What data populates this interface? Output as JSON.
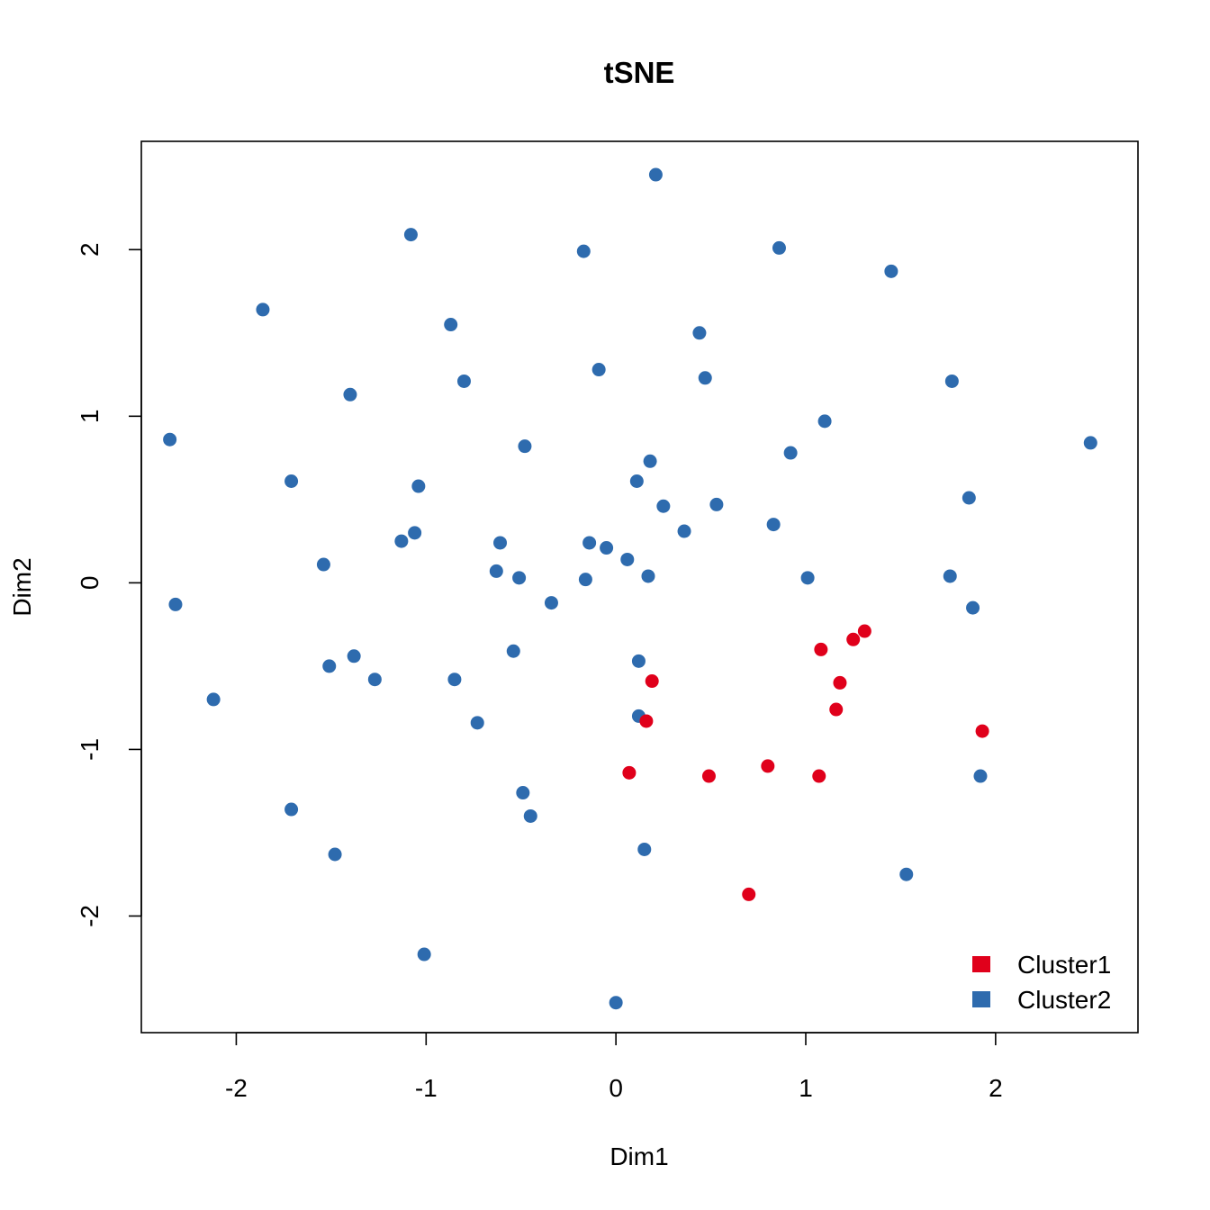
{
  "chart_data": {
    "type": "scatter",
    "title": "tSNE",
    "xlabel": "Dim1",
    "ylabel": "Dim2",
    "xlim": [
      -2.5,
      2.75
    ],
    "ylim": [
      -2.7,
      2.65
    ],
    "xticks": [
      -2,
      -1,
      0,
      1,
      2
    ],
    "yticks": [
      -2,
      -1,
      0,
      1,
      2
    ],
    "xtick_labels": [
      "-2",
      "-1",
      "0",
      "1",
      "2"
    ],
    "ytick_labels": [
      "-2",
      "-1",
      "0",
      "1",
      "2"
    ],
    "grid": false,
    "legend_position": "bottom-right",
    "series": [
      {
        "name": "Cluster1",
        "color": "#E0001B",
        "points": [
          [
            0.19,
            -0.59
          ],
          [
            0.16,
            -0.83
          ],
          [
            0.07,
            -1.14
          ],
          [
            0.49,
            -1.16
          ],
          [
            0.8,
            -1.1
          ],
          [
            1.07,
            -1.16
          ],
          [
            0.7,
            -1.87
          ],
          [
            1.08,
            -0.4
          ],
          [
            1.18,
            -0.6
          ],
          [
            1.16,
            -0.76
          ],
          [
            1.25,
            -0.34
          ],
          [
            1.31,
            -0.29
          ],
          [
            1.93,
            -0.89
          ]
        ]
      },
      {
        "name": "Cluster2",
        "color": "#2E6BAE",
        "points": [
          [
            -2.35,
            0.86
          ],
          [
            -2.32,
            -0.13
          ],
          [
            -2.12,
            -0.7
          ],
          [
            -1.86,
            1.64
          ],
          [
            -1.71,
            0.61
          ],
          [
            -1.71,
            -1.36
          ],
          [
            -1.54,
            0.11
          ],
          [
            -1.51,
            -0.5
          ],
          [
            -1.48,
            -1.63
          ],
          [
            -1.4,
            1.13
          ],
          [
            -1.38,
            -0.44
          ],
          [
            -1.27,
            -0.58
          ],
          [
            -1.13,
            0.25
          ],
          [
            -1.08,
            2.09
          ],
          [
            -1.06,
            0.3
          ],
          [
            -1.04,
            0.58
          ],
          [
            -1.01,
            -2.23
          ],
          [
            -0.87,
            1.55
          ],
          [
            -0.85,
            -0.58
          ],
          [
            -0.8,
            1.21
          ],
          [
            -0.73,
            -0.84
          ],
          [
            -0.63,
            0.07
          ],
          [
            -0.61,
            0.24
          ],
          [
            -0.54,
            -0.41
          ],
          [
            -0.51,
            0.03
          ],
          [
            -0.49,
            -1.26
          ],
          [
            -0.48,
            0.82
          ],
          [
            -0.45,
            -1.4
          ],
          [
            -0.34,
            -0.12
          ],
          [
            -0.17,
            1.99
          ],
          [
            -0.16,
            0.02
          ],
          [
            -0.14,
            0.24
          ],
          [
            -0.09,
            1.28
          ],
          [
            -0.05,
            0.21
          ],
          [
            0.0,
            -2.52
          ],
          [
            0.06,
            0.14
          ],
          [
            0.11,
            0.61
          ],
          [
            0.12,
            -0.47
          ],
          [
            0.12,
            -0.8
          ],
          [
            0.15,
            -1.6
          ],
          [
            0.17,
            0.04
          ],
          [
            0.18,
            0.73
          ],
          [
            0.21,
            2.45
          ],
          [
            0.25,
            0.46
          ],
          [
            0.36,
            0.31
          ],
          [
            0.44,
            1.5
          ],
          [
            0.47,
            1.23
          ],
          [
            0.53,
            0.47
          ],
          [
            0.83,
            0.35
          ],
          [
            0.86,
            2.01
          ],
          [
            0.92,
            0.78
          ],
          [
            1.01,
            0.03
          ],
          [
            1.1,
            0.97
          ],
          [
            1.45,
            1.87
          ],
          [
            1.53,
            -1.75
          ],
          [
            1.76,
            0.04
          ],
          [
            1.77,
            1.21
          ],
          [
            1.86,
            0.51
          ],
          [
            1.88,
            -0.15
          ],
          [
            1.92,
            -1.16
          ],
          [
            2.5,
            0.84
          ]
        ]
      }
    ]
  }
}
